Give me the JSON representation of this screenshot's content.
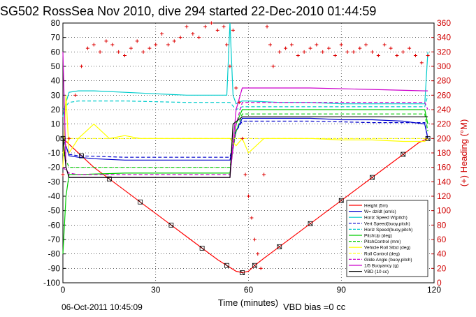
{
  "chart_data": {
    "type": "line",
    "title": "SG502 RossSea Nov 2010, dive 294 started 22-Dec-2010 01:44:59",
    "xlabel": "Time (minutes)",
    "y2label": "(+) Heading (°M)",
    "xlim": [
      0,
      120
    ],
    "ylim": [
      -100,
      80
    ],
    "y2lim": [
      0,
      360
    ],
    "xticks": [
      "0",
      "30",
      "60",
      "90",
      "120"
    ],
    "yticks": [
      "-100",
      "-90",
      "-80",
      "-70",
      "-60",
      "-50",
      "-40",
      "-30",
      "-20",
      "-10",
      "0",
      "10",
      "20",
      "30",
      "40",
      "50",
      "60",
      "70",
      "80"
    ],
    "y2ticks": [
      "0",
      "20",
      "40",
      "60",
      "80",
      "100",
      "120",
      "140",
      "160",
      "180",
      "200",
      "220",
      "240",
      "260",
      "280",
      "300",
      "320",
      "340",
      "360"
    ],
    "grid": true,
    "legend_position": "bottom-right",
    "series": [
      {
        "name": "Height (5m)",
        "color": "#ff0000",
        "style": "solid",
        "x": [
          0,
          2,
          6,
          10,
          15,
          20,
          25,
          30,
          35,
          40,
          45,
          50,
          53,
          56,
          58,
          60,
          62,
          65,
          70,
          75,
          80,
          85,
          90,
          95,
          100,
          105,
          110,
          115,
          118
        ],
        "y": [
          0,
          -4,
          -12,
          -20,
          -28,
          -36,
          -44,
          -52,
          -60,
          -68,
          -76,
          -84,
          -88,
          -92,
          -93,
          -92,
          -88,
          -83,
          -75,
          -67,
          -59,
          -51,
          -43,
          -35,
          -27,
          -19,
          -11,
          -3,
          0
        ]
      },
      {
        "name": "W= dz/dt (cm/s)",
        "color": "#0000cc",
        "style": "solid",
        "x": [
          0,
          1,
          2,
          5,
          10,
          20,
          30,
          40,
          50,
          54,
          56,
          58,
          60,
          70,
          80,
          90,
          100,
          110,
          117,
          118
        ],
        "y": [
          0,
          -5,
          -12,
          -13,
          -14,
          -15,
          -15,
          -15,
          -15,
          -15,
          5,
          14,
          14,
          14,
          14,
          13,
          13,
          12,
          10,
          0
        ]
      },
      {
        "name": "Horiz Speed W(pitch)",
        "color": "#00cccc",
        "style": "solid",
        "x": [
          0,
          1,
          2,
          5,
          10,
          20,
          30,
          40,
          50,
          53,
          54,
          55,
          56,
          58,
          60,
          70,
          80,
          90,
          100,
          110,
          117,
          118
        ],
        "y": [
          15,
          25,
          32,
          33,
          33,
          32,
          31,
          30,
          30,
          30,
          80,
          30,
          24,
          26,
          26,
          25,
          25,
          24,
          24,
          24,
          24,
          60
        ]
      },
      {
        "name": "Vert Speed(buoy,pitch)",
        "color": "#0000cc",
        "style": "dashed",
        "x": [
          0,
          2,
          5,
          20,
          40,
          54,
          56,
          58,
          60,
          80,
          100,
          117,
          118
        ],
        "y": [
          0,
          -11,
          -12,
          -13,
          -13,
          -13,
          5,
          12,
          12,
          12,
          11,
          11,
          0
        ]
      },
      {
        "name": "Horiz Speed(buoy,pitch)",
        "color": "#00cccc",
        "style": "dashed",
        "x": [
          0,
          2,
          5,
          20,
          40,
          54,
          56,
          58,
          60,
          80,
          100,
          117,
          118
        ],
        "y": [
          20,
          25,
          26,
          26,
          25,
          25,
          20,
          22,
          22,
          22,
          22,
          22,
          30
        ]
      },
      {
        "name": "PitchUp (deg)",
        "color": "#00cc00",
        "style": "solid",
        "x": [
          0,
          1,
          2,
          5,
          20,
          40,
          54,
          56,
          58,
          60,
          80,
          100,
          117,
          118
        ],
        "y": [
          -80,
          -40,
          -25,
          -25,
          -24,
          -24,
          -24,
          10,
          20,
          20,
          20,
          20,
          20,
          10
        ]
      },
      {
        "name": "PitchControl (mm)",
        "color": "#00cc00",
        "style": "dashed",
        "x": [
          0,
          2,
          20,
          40,
          54,
          56,
          58,
          60,
          80,
          100,
          117,
          118
        ],
        "y": [
          -10,
          -20,
          -20,
          -20,
          -20,
          5,
          17,
          17,
          17,
          17,
          17,
          5
        ]
      },
      {
        "name": "Vehicle Roll Stbd (deg)",
        "color": "#ffff00",
        "style": "solid",
        "x": [
          0,
          1,
          2,
          5,
          10,
          15,
          20,
          25,
          30,
          35,
          40,
          45,
          50,
          54,
          56,
          58,
          60,
          65,
          70,
          80,
          90,
          100,
          110,
          117,
          118
        ],
        "y": [
          -20,
          30,
          -10,
          0,
          10,
          0,
          2,
          0,
          0,
          0,
          0,
          0,
          0,
          0,
          -5,
          0,
          -10,
          0,
          0,
          0,
          -1,
          -1,
          -2,
          -2,
          0
        ]
      },
      {
        "name": "Roll Control (deg)",
        "color": "#ffff00",
        "style": "dashed",
        "x": [
          0,
          2,
          40,
          54,
          58,
          118
        ],
        "y": [
          -10,
          0,
          0,
          0,
          0,
          0
        ]
      },
      {
        "name": "Glide Angle (buoy,pitch)",
        "color": "#cc00cc",
        "style": "dashed",
        "x": [
          0,
          2,
          5,
          20,
          40,
          54,
          56,
          58,
          60,
          80,
          100,
          117,
          118
        ],
        "y": [
          -20,
          -24,
          -25,
          -25,
          -25,
          -25,
          10,
          25,
          25,
          25,
          25,
          25,
          20
        ]
      },
      {
        "name": "1/5 Buoyancy (g)",
        "color": "#cc00cc",
        "style": "solid",
        "x": [
          0,
          1,
          2,
          5,
          20,
          40,
          54,
          56,
          58,
          60,
          80,
          100,
          117,
          118
        ],
        "y": [
          60,
          -20,
          -27,
          -27,
          -27,
          -27,
          -27,
          20,
          35,
          35,
          35,
          34,
          33,
          33
        ]
      },
      {
        "name": "VBD (10 cc)",
        "color": "#000000",
        "style": "solid",
        "x": [
          0,
          1,
          2,
          54,
          55,
          58,
          118
        ],
        "y": [
          2,
          -20,
          -27,
          -27,
          10,
          15,
          15
        ]
      },
      {
        "name": "Heading",
        "color": "#dd0000",
        "style": "plus",
        "axis": "right",
        "x": [
          0,
          2,
          4,
          6,
          8,
          10,
          12,
          14,
          16,
          18,
          20,
          22,
          24,
          26,
          28,
          30,
          32,
          34,
          36,
          38,
          40,
          42,
          44,
          46,
          48,
          50,
          52,
          53,
          54,
          55,
          56,
          57,
          58,
          59,
          60,
          61,
          62,
          63,
          64,
          65,
          66,
          67,
          68,
          70,
          72,
          74,
          76,
          78,
          80,
          82,
          84,
          86,
          88,
          90,
          92,
          94,
          96,
          98,
          100,
          102,
          104,
          106,
          108,
          110,
          112,
          114,
          116,
          118
        ],
        "y": [
          150,
          200,
          260,
          300,
          325,
          330,
          320,
          335,
          330,
          320,
          315,
          325,
          335,
          320,
          325,
          330,
          345,
          330,
          335,
          340,
          355,
          345,
          340,
          355,
          360,
          350,
          355,
          330,
          300,
          350,
          270,
          250,
          200,
          150,
          120,
          90,
          60,
          40,
          20,
          150,
          355,
          330,
          300,
          320,
          325,
          330,
          315,
          320,
          325,
          330,
          320,
          325,
          315,
          330,
          320,
          320,
          325,
          330,
          320,
          315,
          330,
          325,
          315,
          320,
          325,
          315,
          305,
          315
        ]
      }
    ],
    "annotations": {
      "date_stamp": "06-Oct-2011 10:45:09",
      "vbd_bias": "VBD bias =0 cc"
    }
  }
}
